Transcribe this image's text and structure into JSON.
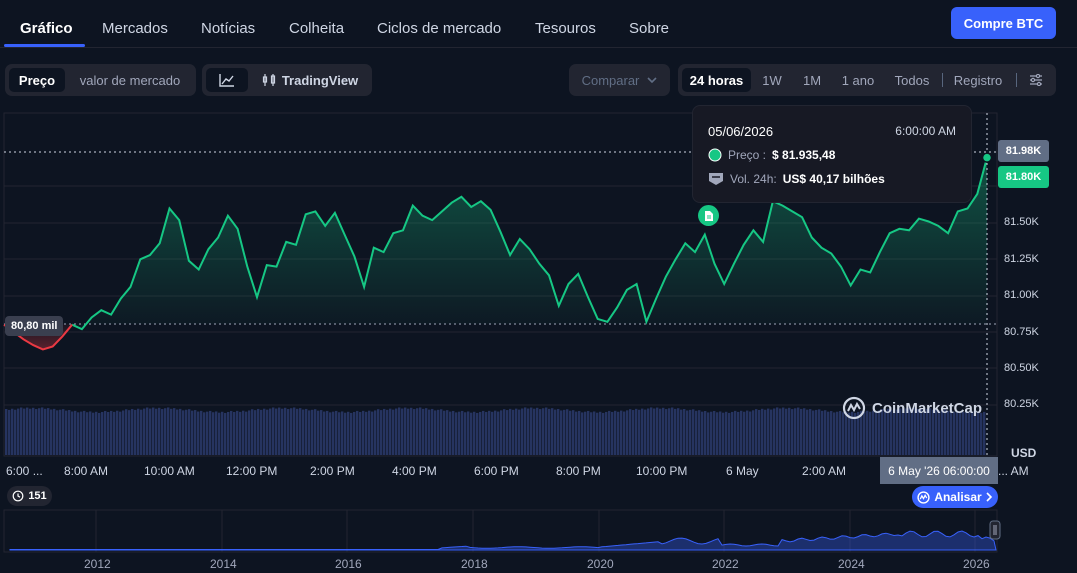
{
  "nav": {
    "tabs": [
      {
        "label": "Gráfico",
        "active": true
      },
      {
        "label": "Mercados"
      },
      {
        "label": "Notícias"
      },
      {
        "label": "Colheita"
      },
      {
        "label": "Ciclos de mercado"
      },
      {
        "label": "Tesouros"
      },
      {
        "label": "Sobre"
      }
    ],
    "buy_label": "Compre BTC"
  },
  "toolbar": {
    "metric_tabs": [
      "Preço",
      "valor de mercado"
    ],
    "tradingview_label": "TradingView",
    "compare_label": "Comparar",
    "ranges": [
      "24 horas",
      "1W",
      "1M",
      "1 ano",
      "Todos"
    ],
    "log_label": "Registro"
  },
  "chart_data": {
    "type": "area",
    "x_tick_labels": [
      "6:00 ...",
      "8:00 AM",
      "10:00 AM",
      "12:00 PM",
      "2:00 PM",
      "4:00 PM",
      "6:00 PM",
      "8:00 PM",
      "10:00 PM",
      "6 May",
      "2:00 AM",
      "... AM"
    ],
    "y_tick_labels": [
      "81.50K",
      "81.25K",
      "81.00K",
      "80.75K",
      "80.50K",
      "80.25K"
    ],
    "y_unit": "USD",
    "ylim": [
      80.25,
      81.98
    ],
    "series": [
      {
        "values": [
          80.8,
          80.75,
          80.7,
          80.66,
          80.63,
          80.65,
          80.72,
          80.8,
          80.77,
          80.85,
          80.9,
          80.87,
          80.98,
          81.06,
          81.25,
          81.28,
          81.36,
          81.6,
          81.52,
          81.24,
          81.18,
          81.32,
          81.4,
          81.55,
          81.46,
          81.2,
          80.99,
          81.21,
          81.2,
          81.37,
          81.35,
          81.56,
          81.58,
          81.48,
          81.57,
          81.42,
          81.27,
          81.06,
          81.33,
          81.3,
          81.43,
          81.45,
          81.62,
          81.55,
          81.52,
          81.58,
          81.64,
          81.68,
          81.61,
          81.65,
          81.59,
          81.44,
          81.28,
          81.39,
          81.32,
          81.22,
          81.14,
          80.93,
          81.08,
          81.15,
          80.99,
          80.84,
          80.82,
          80.92,
          81.04,
          81.08,
          80.82,
          80.98,
          81.13,
          81.25,
          81.36,
          81.3,
          81.42,
          81.22,
          81.08,
          81.22,
          81.35,
          81.45,
          81.37,
          81.65,
          81.62,
          81.58,
          81.54,
          81.4,
          81.33,
          81.29,
          81.2,
          81.07,
          81.18,
          81.16,
          81.3,
          81.43,
          81.46,
          81.45,
          81.53,
          81.51,
          81.48,
          81.43,
          81.58,
          81.6,
          81.7,
          81.95
        ]
      }
    ],
    "volume_caption": "Vol. 24h",
    "overview_years": [
      "2012",
      "2014",
      "2016",
      "2018",
      "2020",
      "2022",
      "2024",
      "2026"
    ]
  },
  "axis_tags": {
    "high_tag": "81.98K",
    "current_tag": "81.80K",
    "start_tag": "80,80 mil",
    "hover_date": "6 May '26 06:00:00"
  },
  "tooltip": {
    "date": "05/06/2026",
    "time": "6:00:00 AM",
    "price_label": "Preço :",
    "price_value": "$ 81.935,48",
    "vol_label": "Vol. 24h:",
    "vol_value": "US$ 40,17 bilhões"
  },
  "watermark": "CoinMarketCap",
  "events_count": "151",
  "analyze_label": "Analisar",
  "colors": {
    "accent": "#3861fb",
    "up": "#16c784",
    "down": "#ea3943",
    "background": "#0d1421"
  }
}
